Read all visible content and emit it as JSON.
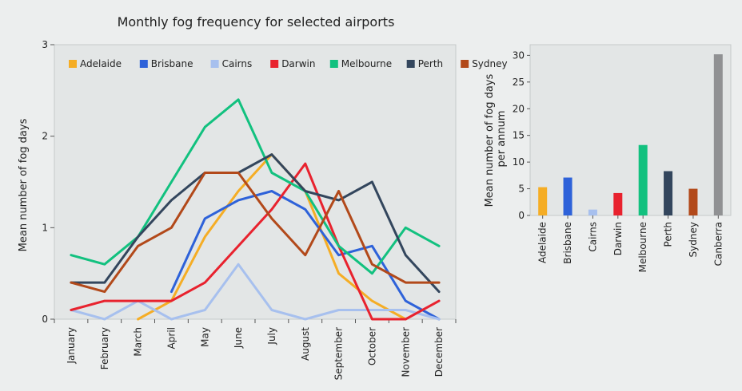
{
  "colors": {
    "Adelaide": "#f5ad25",
    "Brisbane": "#2e62d9",
    "Cairns": "#a7c0ee",
    "Darwin": "#e8222e",
    "Melbourne": "#12c17f",
    "Perth": "#33465d",
    "Sydney": "#b2491a",
    "Canberra": "#909193"
  },
  "chart_data": [
    {
      "type": "line",
      "title": "Monthly fog frequency for selected airports",
      "xlabel": "",
      "ylabel": "Mean number of fog days",
      "ylim": [
        0,
        3
      ],
      "yticks": [
        "0",
        "1",
        "2",
        "3"
      ],
      "grid": false,
      "legend_position": "top",
      "categories": [
        "January",
        "February",
        "March",
        "April",
        "May",
        "June",
        "July",
        "August",
        "September",
        "October",
        "November",
        "December"
      ],
      "series": [
        {
          "name": "Adelaide",
          "values": [
            null,
            null,
            0.0,
            0.2,
            0.9,
            1.4,
            1.8,
            1.4,
            0.5,
            0.2,
            0.0,
            null
          ]
        },
        {
          "name": "Brisbane",
          "values": [
            null,
            null,
            null,
            0.3,
            1.1,
            1.3,
            1.4,
            1.2,
            0.7,
            0.8,
            0.2,
            0.0
          ]
        },
        {
          "name": "Cairns",
          "values": [
            0.1,
            0.0,
            0.2,
            0.0,
            0.1,
            0.6,
            0.1,
            0.0,
            0.1,
            0.1,
            0.1,
            0.0
          ]
        },
        {
          "name": "Darwin",
          "values": [
            0.1,
            0.2,
            0.2,
            0.2,
            0.4,
            0.8,
            1.2,
            1.7,
            0.8,
            0.0,
            0.0,
            0.2
          ]
        },
        {
          "name": "Melbourne",
          "values": [
            0.7,
            0.6,
            0.9,
            1.5,
            2.1,
            2.4,
            1.6,
            1.4,
            0.8,
            0.5,
            1.0,
            0.8
          ]
        },
        {
          "name": "Perth",
          "values": [
            0.4,
            0.4,
            0.9,
            1.3,
            1.6,
            1.6,
            1.8,
            1.4,
            1.3,
            1.5,
            0.7,
            0.3
          ]
        },
        {
          "name": "Sydney",
          "values": [
            0.4,
            0.3,
            0.8,
            1.0,
            1.6,
            1.6,
            1.1,
            0.7,
            1.4,
            0.6,
            0.4,
            0.4
          ]
        }
      ]
    },
    {
      "type": "bar",
      "title": "",
      "xlabel": "",
      "ylabel": "Mean number of fog days per annum",
      "ylim": [
        0,
        32
      ],
      "yticks": [
        "0",
        "5",
        "10",
        "15",
        "20",
        "25",
        "30"
      ],
      "grid": false,
      "categories": [
        "Adelaide",
        "Brisbane",
        "Cairns",
        "Darwin",
        "Melbourne",
        "Perth",
        "Sydney",
        "Canberra"
      ],
      "values": [
        5.3,
        7.1,
        1.1,
        4.2,
        13.2,
        8.3,
        5.0,
        30.2
      ]
    }
  ]
}
